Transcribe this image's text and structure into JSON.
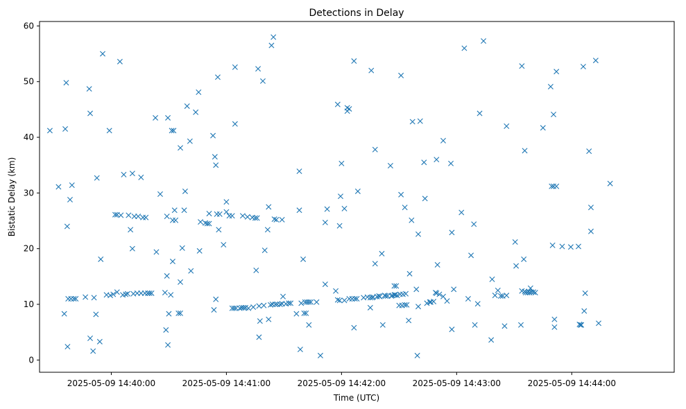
{
  "chart_data": {
    "type": "scatter",
    "title": "Detections in Delay",
    "xlabel": "Time (UTC)",
    "ylabel": "Bistatic Delay (km)",
    "marker": "x",
    "color": "#1f77b4",
    "grid": false,
    "x_ticks": [
      {
        "value": 0,
        "label": "2025-05-09 14:40:00"
      },
      {
        "value": 60,
        "label": "2025-05-09 14:41:00"
      },
      {
        "value": 120,
        "label": "2025-05-09 14:42:00"
      },
      {
        "value": 180,
        "label": "2025-05-09 14:43:00"
      },
      {
        "value": 240,
        "label": "2025-05-09 14:44:00"
      }
    ],
    "y_ticks": [
      0,
      10,
      20,
      30,
      40,
      50,
      60
    ],
    "ylim": [
      -2.2,
      60.8
    ],
    "xlim": [
      -37.4,
      293.4
    ],
    "x_unit": "seconds after 2025-05-09 14:40:00",
    "points": [
      [
        -32,
        41.2
      ],
      [
        -27.5,
        31.1
      ],
      [
        -24.5,
        8.3
      ],
      [
        -24,
        41.5
      ],
      [
        -23.5,
        49.8
      ],
      [
        -23,
        24
      ],
      [
        -22.5,
        11
      ],
      [
        -22.8,
        2.4
      ],
      [
        -21.5,
        28.8
      ],
      [
        -21,
        11
      ],
      [
        -20.5,
        31.4
      ],
      [
        -19.5,
        11
      ],
      [
        -18.5,
        11
      ],
      [
        -13.5,
        11.3
      ],
      [
        -11.5,
        48.7
      ],
      [
        -11,
        44.3
      ],
      [
        -11,
        3.9
      ],
      [
        -9.5,
        1.6
      ],
      [
        -9,
        11.2
      ],
      [
        -8,
        8.2
      ],
      [
        -7.5,
        32.7
      ],
      [
        -6,
        3.3
      ],
      [
        -5.5,
        18.1
      ],
      [
        -4.5,
        55
      ],
      [
        -2.5,
        11.7
      ],
      [
        -1,
        41.2
      ],
      [
        -0.5,
        11.6
      ],
      [
        1,
        11.8
      ],
      [
        2,
        26.1
      ],
      [
        3,
        12.2
      ],
      [
        3,
        26.1
      ],
      [
        4.5,
        53.6
      ],
      [
        5,
        26
      ],
      [
        6,
        11.7
      ],
      [
        6.5,
        33.3
      ],
      [
        7.5,
        11.8
      ],
      [
        8.5,
        11.9
      ],
      [
        9,
        26
      ],
      [
        10,
        23.4
      ],
      [
        11,
        20
      ],
      [
        11,
        33.5
      ],
      [
        11.5,
        11.9
      ],
      [
        12,
        25.8
      ],
      [
        13.5,
        12
      ],
      [
        14,
        25.8
      ],
      [
        15.5,
        32.8
      ],
      [
        15.5,
        12
      ],
      [
        16.5,
        25.6
      ],
      [
        17.5,
        12
      ],
      [
        18,
        25.6
      ],
      [
        19,
        12
      ],
      [
        20,
        12
      ],
      [
        21,
        12
      ],
      [
        23,
        43.5
      ],
      [
        23.5,
        19.4
      ],
      [
        25.5,
        29.8
      ],
      [
        28,
        12.1
      ],
      [
        28.5,
        5.4
      ],
      [
        29,
        15.1
      ],
      [
        29,
        25.8
      ],
      [
        29.5,
        43.5
      ],
      [
        29.5,
        2.7
      ],
      [
        30,
        8.3
      ],
      [
        31,
        11.7
      ],
      [
        31.5,
        41.2
      ],
      [
        32,
        17.7
      ],
      [
        32,
        25.1
      ],
      [
        32.5,
        41.2
      ],
      [
        33,
        26.9
      ],
      [
        33.5,
        25.1
      ],
      [
        35,
        8.4
      ],
      [
        36,
        38.1
      ],
      [
        36,
        14
      ],
      [
        36,
        8.4
      ],
      [
        37,
        20.1
      ],
      [
        38,
        26.9
      ],
      [
        38.5,
        30.3
      ],
      [
        39.5,
        45.6
      ],
      [
        41,
        39.3
      ],
      [
        41.5,
        16
      ],
      [
        44,
        44.5
      ],
      [
        45.5,
        48.1
      ],
      [
        46,
        19.6
      ],
      [
        46.5,
        24.8
      ],
      [
        49,
        24.6
      ],
      [
        50,
        24.5
      ],
      [
        51,
        24.5
      ],
      [
        51,
        26.3
      ],
      [
        53,
        40.3
      ],
      [
        53.5,
        9
      ],
      [
        54,
        36.5
      ],
      [
        54.5,
        10.9
      ],
      [
        54.5,
        35
      ],
      [
        55,
        26.2
      ],
      [
        55.5,
        50.8
      ],
      [
        56,
        23.4
      ],
      [
        56.5,
        26.2
      ],
      [
        58.5,
        20.7
      ],
      [
        60,
        28.4
      ],
      [
        60,
        26.6
      ],
      [
        61.5,
        25.9
      ],
      [
        63,
        9.3
      ],
      [
        63,
        25.9
      ],
      [
        64,
        9.3
      ],
      [
        64.5,
        42.4
      ],
      [
        64.5,
        52.6
      ],
      [
        65,
        9.3
      ],
      [
        67,
        9.3
      ],
      [
        68,
        9.4
      ],
      [
        68.5,
        25.9
      ],
      [
        69,
        9.4
      ],
      [
        70,
        9.4
      ],
      [
        71,
        25.7
      ],
      [
        71.5,
        9.3
      ],
      [
        73.5,
        25.6
      ],
      [
        74,
        9.5
      ],
      [
        75,
        25.5
      ],
      [
        75.5,
        16.1
      ],
      [
        76,
        25.5
      ],
      [
        76.5,
        52.3
      ],
      [
        77,
        4.1
      ],
      [
        77,
        9.7
      ],
      [
        77.5,
        7
      ],
      [
        79,
        50.1
      ],
      [
        79.5,
        9.8
      ],
      [
        80,
        19.7
      ],
      [
        81.5,
        23.4
      ],
      [
        82,
        7.3
      ],
      [
        82,
        27.5
      ],
      [
        83,
        9.9
      ],
      [
        83.5,
        56.5
      ],
      [
        84,
        10
      ],
      [
        84.5,
        58
      ],
      [
        85,
        25.3
      ],
      [
        85.5,
        10
      ],
      [
        86,
        25.2
      ],
      [
        86.5,
        10
      ],
      [
        88,
        10
      ],
      [
        89,
        25.2
      ],
      [
        89,
        10.1
      ],
      [
        89.5,
        11.4
      ],
      [
        91,
        10.1
      ],
      [
        92.5,
        10.2
      ],
      [
        93.5,
        10.2
      ],
      [
        96.5,
        8.3
      ],
      [
        98,
        33.9
      ],
      [
        98,
        26.9
      ],
      [
        98.5,
        1.9
      ],
      [
        99,
        10.2
      ],
      [
        100,
        18.1
      ],
      [
        100.5,
        8.4
      ],
      [
        101,
        10.4
      ],
      [
        101.5,
        8.4
      ],
      [
        102,
        10.4
      ],
      [
        103,
        10.4
      ],
      [
        103,
        6.3
      ],
      [
        104,
        10.4
      ],
      [
        107,
        10.4
      ],
      [
        109,
        0.8
      ],
      [
        111.5,
        13.6
      ],
      [
        111.5,
        24.7
      ],
      [
        112.5,
        27.1
      ],
      [
        117,
        12.4
      ],
      [
        118,
        45.9
      ],
      [
        118,
        10.8
      ],
      [
        119,
        10.7
      ],
      [
        119,
        24.1
      ],
      [
        119.5,
        29.4
      ],
      [
        120,
        35.3
      ],
      [
        121.5,
        10.7
      ],
      [
        121.5,
        27.2
      ],
      [
        123,
        45.3
      ],
      [
        123,
        44.7
      ],
      [
        124,
        45.1
      ],
      [
        124,
        11
      ],
      [
        125.5,
        11
      ],
      [
        126.5,
        53.7
      ],
      [
        126.5,
        5.8
      ],
      [
        127,
        11
      ],
      [
        128,
        11
      ],
      [
        128.5,
        30.3
      ],
      [
        131.5,
        11.2
      ],
      [
        133.5,
        11.3
      ],
      [
        135,
        11.2
      ],
      [
        135,
        9.4
      ],
      [
        135.5,
        52
      ],
      [
        136,
        11.2
      ],
      [
        136.5,
        11.3
      ],
      [
        137.5,
        37.8
      ],
      [
        137.5,
        17.3
      ],
      [
        138.5,
        11.4
      ],
      [
        139.5,
        11.5
      ],
      [
        140,
        11.4
      ],
      [
        141,
        19.1
      ],
      [
        141.5,
        6.3
      ],
      [
        142.5,
        11.6
      ],
      [
        143,
        11.5
      ],
      [
        144,
        11.5
      ],
      [
        145.5,
        34.9
      ],
      [
        146,
        11.5
      ],
      [
        146.5,
        11.6
      ],
      [
        147.5,
        11.7
      ],
      [
        147.5,
        13.3
      ],
      [
        148,
        11.7
      ],
      [
        148.5,
        13.3
      ],
      [
        149,
        11.6
      ],
      [
        150,
        9.8
      ],
      [
        150.5,
        11.8
      ],
      [
        151,
        29.7
      ],
      [
        151,
        51.1
      ],
      [
        151.5,
        9.8
      ],
      [
        152,
        11.8
      ],
      [
        153,
        27.4
      ],
      [
        153,
        9.9
      ],
      [
        153.5,
        11.9
      ],
      [
        154,
        9.9
      ],
      [
        155,
        7.1
      ],
      [
        155.5,
        15.5
      ],
      [
        156.5,
        25.1
      ],
      [
        157,
        42.8
      ],
      [
        159,
        12.7
      ],
      [
        159.5,
        0.8
      ],
      [
        160,
        22.6
      ],
      [
        160,
        9.6
      ],
      [
        161,
        42.9
      ],
      [
        163,
        35.5
      ],
      [
        163.5,
        29
      ],
      [
        164.5,
        10.2
      ],
      [
        166,
        10.4
      ],
      [
        166.5,
        10.4
      ],
      [
        168,
        10.5
      ],
      [
        169,
        12.1
      ],
      [
        169.5,
        36
      ],
      [
        169.5,
        12
      ],
      [
        170,
        17.1
      ],
      [
        171,
        11.8
      ],
      [
        173,
        39.4
      ],
      [
        173,
        11.4
      ],
      [
        175,
        10.6
      ],
      [
        177,
        35.3
      ],
      [
        177.5,
        22.9
      ],
      [
        177.5,
        5.5
      ],
      [
        178.5,
        12.7
      ],
      [
        182.5,
        26.5
      ],
      [
        184,
        56
      ],
      [
        186,
        11
      ],
      [
        187.5,
        18.8
      ],
      [
        189,
        24.4
      ],
      [
        189.5,
        6.3
      ],
      [
        191,
        10.1
      ],
      [
        192,
        44.3
      ],
      [
        194,
        57.3
      ],
      [
        198,
        3.6
      ],
      [
        198.5,
        14.5
      ],
      [
        200,
        11.6
      ],
      [
        201.5,
        12.5
      ],
      [
        203,
        11.5
      ],
      [
        204,
        11.5
      ],
      [
        205,
        6.1
      ],
      [
        206,
        11.6
      ],
      [
        206,
        42
      ],
      [
        210.5,
        21.2
      ],
      [
        211,
        16.9
      ],
      [
        213.5,
        6.3
      ],
      [
        214,
        52.8
      ],
      [
        214,
        12.4
      ],
      [
        215.5,
        12.3
      ],
      [
        215,
        18.1
      ],
      [
        215.5,
        37.6
      ],
      [
        216,
        12.1
      ],
      [
        217,
        12.1
      ],
      [
        217.5,
        12.3
      ],
      [
        218,
        12.1
      ],
      [
        218.5,
        12.9
      ],
      [
        219,
        12.2
      ],
      [
        220,
        12.2
      ],
      [
        221,
        12.1
      ],
      [
        225,
        41.7
      ],
      [
        229,
        49.1
      ],
      [
        229.5,
        31.2
      ],
      [
        230,
        20.6
      ],
      [
        230.5,
        31.2
      ],
      [
        230.5,
        44.1
      ],
      [
        231,
        7.3
      ],
      [
        231,
        5.9
      ],
      [
        232,
        31.2
      ],
      [
        232,
        51.8
      ],
      [
        235,
        20.4
      ],
      [
        239.5,
        20.3
      ],
      [
        243.5,
        20.4
      ],
      [
        244,
        6.4
      ],
      [
        244.5,
        6.3
      ],
      [
        245,
        6.3
      ],
      [
        246,
        52.7
      ],
      [
        246.5,
        8.8
      ],
      [
        247,
        12
      ],
      [
        249,
        37.5
      ],
      [
        250,
        23.1
      ],
      [
        250,
        27.4
      ],
      [
        252.5,
        53.8
      ],
      [
        254,
        6.6
      ],
      [
        260,
        31.7
      ]
    ]
  }
}
